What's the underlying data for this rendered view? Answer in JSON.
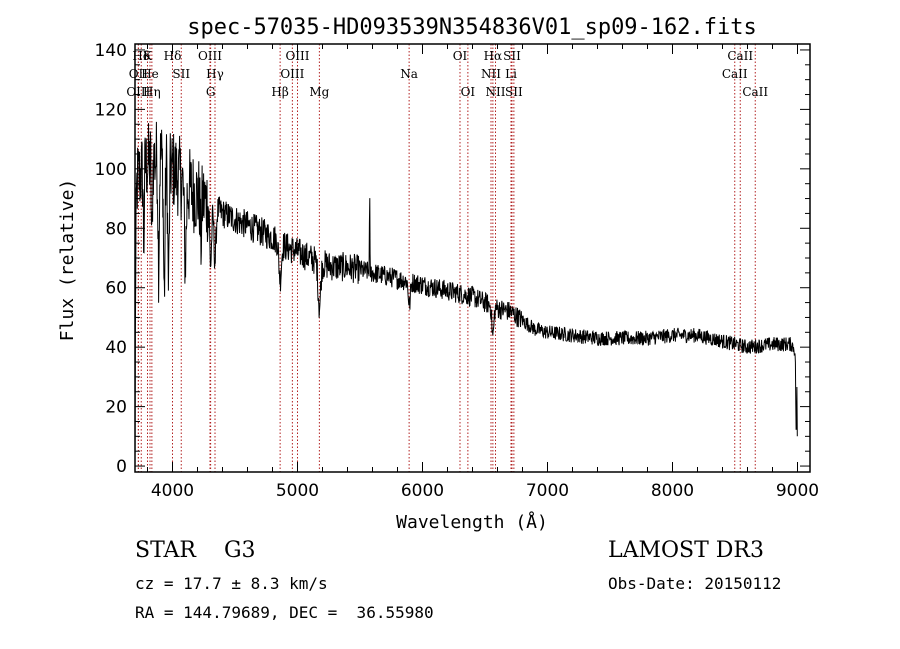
{
  "chart_data": {
    "type": "line",
    "title": "spec-57035-HD093539N354836V01_sp09-162.fits",
    "xlabel": "Wavelength (Å)",
    "ylabel": "Flux (relative)",
    "xlim": [
      3700,
      9100
    ],
    "ylim": [
      -2,
      142
    ],
    "xticks": [
      4000,
      5000,
      6000,
      7000,
      8000,
      9000
    ],
    "xtick_labels": [
      "4000",
      "5000",
      "6000",
      "7000",
      "8000",
      "9000"
    ],
    "yticks": [
      0,
      20,
      40,
      60,
      80,
      100,
      120,
      140
    ],
    "ytick_labels": [
      "0",
      "20",
      "40",
      "60",
      "80",
      "100",
      "120",
      "140"
    ],
    "continuum": [
      [
        3700,
        95
      ],
      [
        3800,
        102
      ],
      [
        3900,
        104
      ],
      [
        4000,
        100
      ],
      [
        4100,
        95
      ],
      [
        4200,
        91
      ],
      [
        4300,
        88
      ],
      [
        4400,
        85
      ],
      [
        4500,
        83
      ],
      [
        4600,
        81
      ],
      [
        4700,
        79
      ],
      [
        4800,
        77
      ],
      [
        4900,
        74
      ],
      [
        5000,
        72
      ],
      [
        5100,
        70
      ],
      [
        5200,
        68
      ],
      [
        5300,
        67
      ],
      [
        5400,
        67
      ],
      [
        5500,
        66
      ],
      [
        5600,
        65
      ],
      [
        5700,
        64
      ],
      [
        5800,
        63
      ],
      [
        5900,
        62
      ],
      [
        6000,
        61
      ],
      [
        6100,
        60
      ],
      [
        6200,
        59
      ],
      [
        6300,
        58
      ],
      [
        6400,
        57
      ],
      [
        6500,
        55
      ],
      [
        6600,
        53
      ],
      [
        6700,
        52
      ],
      [
        6800,
        49
      ],
      [
        6900,
        46
      ],
      [
        7000,
        45
      ],
      [
        7200,
        44
      ],
      [
        7400,
        43
      ],
      [
        7600,
        43
      ],
      [
        7800,
        43
      ],
      [
        8000,
        44
      ],
      [
        8200,
        44
      ],
      [
        8400,
        42
      ],
      [
        8600,
        40
      ],
      [
        8800,
        41
      ],
      [
        8950,
        41
      ],
      [
        9000,
        38
      ]
    ],
    "features": [
      {
        "x": 3700,
        "depth": 50,
        "width": 6
      },
      {
        "x": 3770,
        "depth": 25,
        "width": 4
      },
      {
        "x": 3835,
        "depth": 30,
        "width": 4
      },
      {
        "x": 3889,
        "depth": 35,
        "width": 5
      },
      {
        "x": 3934,
        "depth": 45,
        "width": 6
      },
      {
        "x": 3968,
        "depth": 40,
        "width": 6
      },
      {
        "x": 4102,
        "depth": 25,
        "width": 8
      },
      {
        "x": 4227,
        "depth": 15,
        "width": 5
      },
      {
        "x": 4305,
        "depth": 20,
        "width": 8
      },
      {
        "x": 4340,
        "depth": 18,
        "width": 8
      },
      {
        "x": 4861,
        "depth": 12,
        "width": 10
      },
      {
        "x": 5175,
        "depth": 15,
        "width": 10
      },
      {
        "x": 5895,
        "depth": 8,
        "width": 8
      },
      {
        "x": 6563,
        "depth": 10,
        "width": 8
      },
      {
        "x": 5577,
        "depth": -25,
        "width": 2
      },
      {
        "x": 8990,
        "depth": 28,
        "width": 4
      }
    ],
    "lines": [
      {
        "name": "Hδ",
        "x": 3750,
        "row": 0
      },
      {
        "name": "K",
        "x": 3800,
        "row": 0
      },
      {
        "name": "Hδ",
        "x": 4000,
        "row": 0
      },
      {
        "name": "OIII",
        "x": 4300,
        "row": 0
      },
      {
        "name": "OIII",
        "x": 5000,
        "row": 0
      },
      {
        "name": "OI",
        "x": 6300,
        "row": 0
      },
      {
        "name": "Hα",
        "x": 6563,
        "row": 0
      },
      {
        "name": "SII",
        "x": 6716,
        "row": 0
      },
      {
        "name": "CaII",
        "x": 8542,
        "row": 0
      },
      {
        "name": "OII",
        "x": 3727,
        "row": 1
      },
      {
        "name": "He",
        "x": 3820,
        "row": 1
      },
      {
        "name": "SII",
        "x": 4070,
        "row": 1
      },
      {
        "name": "Hγ",
        "x": 4340,
        "row": 1
      },
      {
        "name": "OIII",
        "x": 4959,
        "row": 1
      },
      {
        "name": "Na",
        "x": 5893,
        "row": 1
      },
      {
        "name": "NII",
        "x": 6548,
        "row": 1
      },
      {
        "name": "Li",
        "x": 6708,
        "row": 1
      },
      {
        "name": "CaII",
        "x": 8498,
        "row": 1
      },
      {
        "name": "OIII",
        "x": 3727,
        "row": 2
      },
      {
        "name": "Hη",
        "x": 3835,
        "row": 2
      },
      {
        "name": "G",
        "x": 4305,
        "row": 2
      },
      {
        "name": "Hβ",
        "x": 4861,
        "row": 2
      },
      {
        "name": "Mg",
        "x": 5175,
        "row": 2
      },
      {
        "name": "OI",
        "x": 6363,
        "row": 2
      },
      {
        "name": "NII",
        "x": 6584,
        "row": 2
      },
      {
        "name": "SII",
        "x": 6731,
        "row": 2
      },
      {
        "name": "CaII",
        "x": 8662,
        "row": 2
      }
    ]
  },
  "footer": {
    "class_label": "STAR",
    "subclass": "G3",
    "survey": "LAMOST DR3",
    "cz": "cz = 17.7 ± 8.3 km/s",
    "obs_date": "Obs-Date: 20150112",
    "coords": "RA = 144.79689, DEC =  36.55980"
  },
  "colors": {
    "line_marker": "#b22222",
    "spectrum": "#000000"
  }
}
